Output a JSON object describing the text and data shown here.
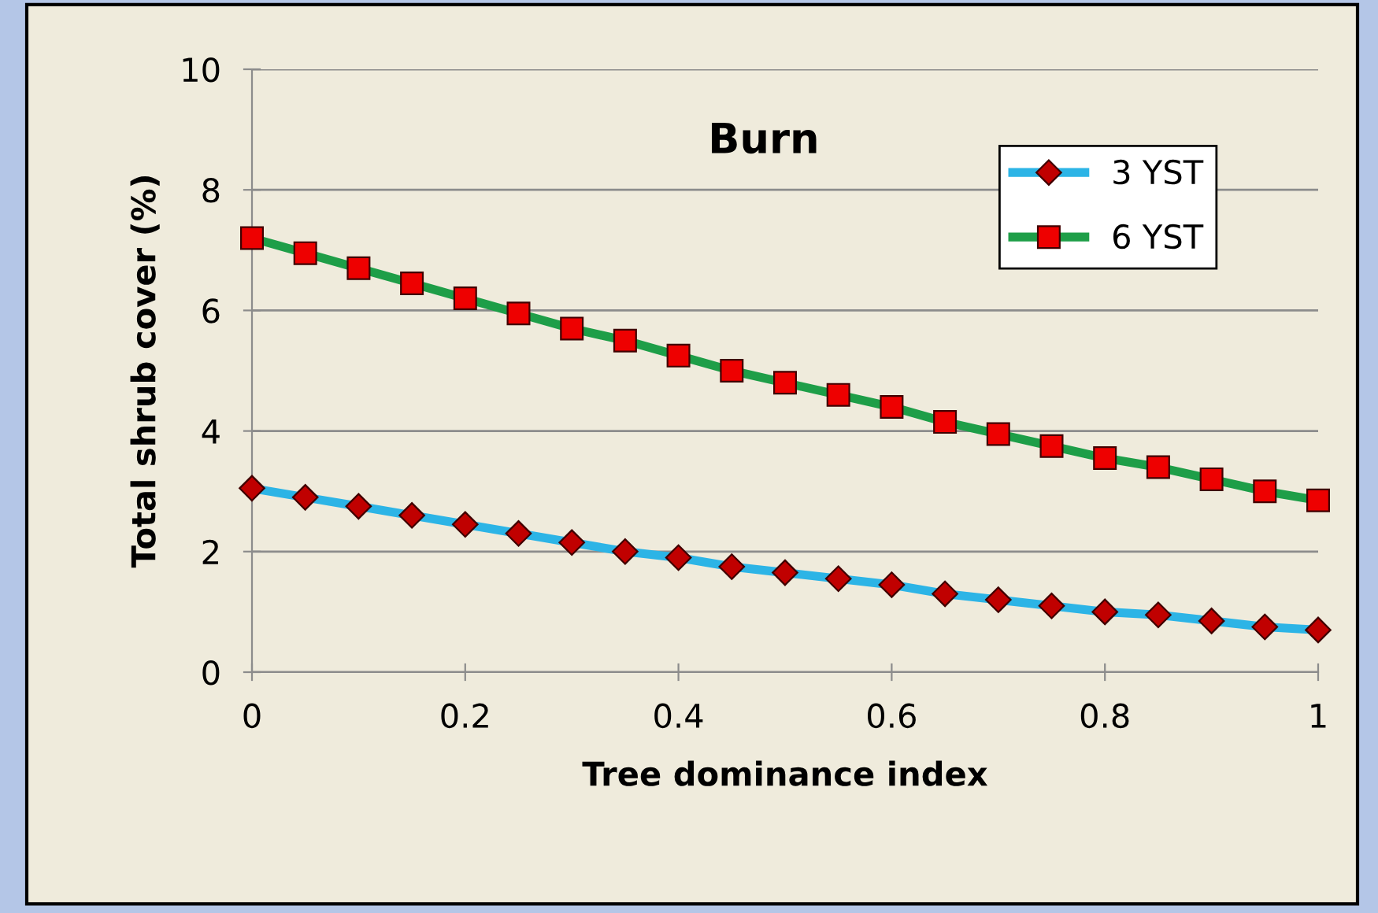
{
  "chart_data": {
    "type": "line",
    "title": "Burn",
    "xlabel": "Tree dominance index",
    "ylabel": "Total shrub cover (%)",
    "x": [
      0,
      0.05,
      0.1,
      0.15,
      0.2,
      0.25,
      0.3,
      0.35,
      0.4,
      0.45,
      0.5,
      0.55,
      0.6,
      0.65,
      0.7,
      0.75,
      0.8,
      0.85,
      0.9,
      0.95,
      1
    ],
    "series": [
      {
        "name": "3 YST",
        "color": "#2cb4e6",
        "marker": "diamond",
        "values": [
          3.05,
          2.9,
          2.75,
          2.6,
          2.45,
          2.3,
          2.15,
          2.0,
          1.9,
          1.75,
          1.65,
          1.55,
          1.45,
          1.3,
          1.2,
          1.1,
          1.0,
          0.95,
          0.85,
          0.75,
          0.7
        ]
      },
      {
        "name": "6 YST",
        "color": "#1e9e48",
        "marker": "square",
        "values": [
          7.2,
          6.95,
          6.7,
          6.45,
          6.2,
          5.95,
          5.7,
          5.5,
          5.25,
          5.0,
          4.8,
          4.6,
          4.4,
          4.15,
          3.95,
          3.75,
          3.55,
          3.4,
          3.2,
          3.0,
          2.85
        ]
      }
    ],
    "xlim": [
      0,
      1
    ],
    "xticks": [
      0,
      0.2,
      0.4,
      0.6,
      0.8,
      1
    ],
    "ylim": [
      0,
      10
    ],
    "yticks": [
      0,
      2,
      4,
      6,
      8,
      10
    ],
    "grid": "y",
    "legend": "top right",
    "line_style": "solid"
  }
}
